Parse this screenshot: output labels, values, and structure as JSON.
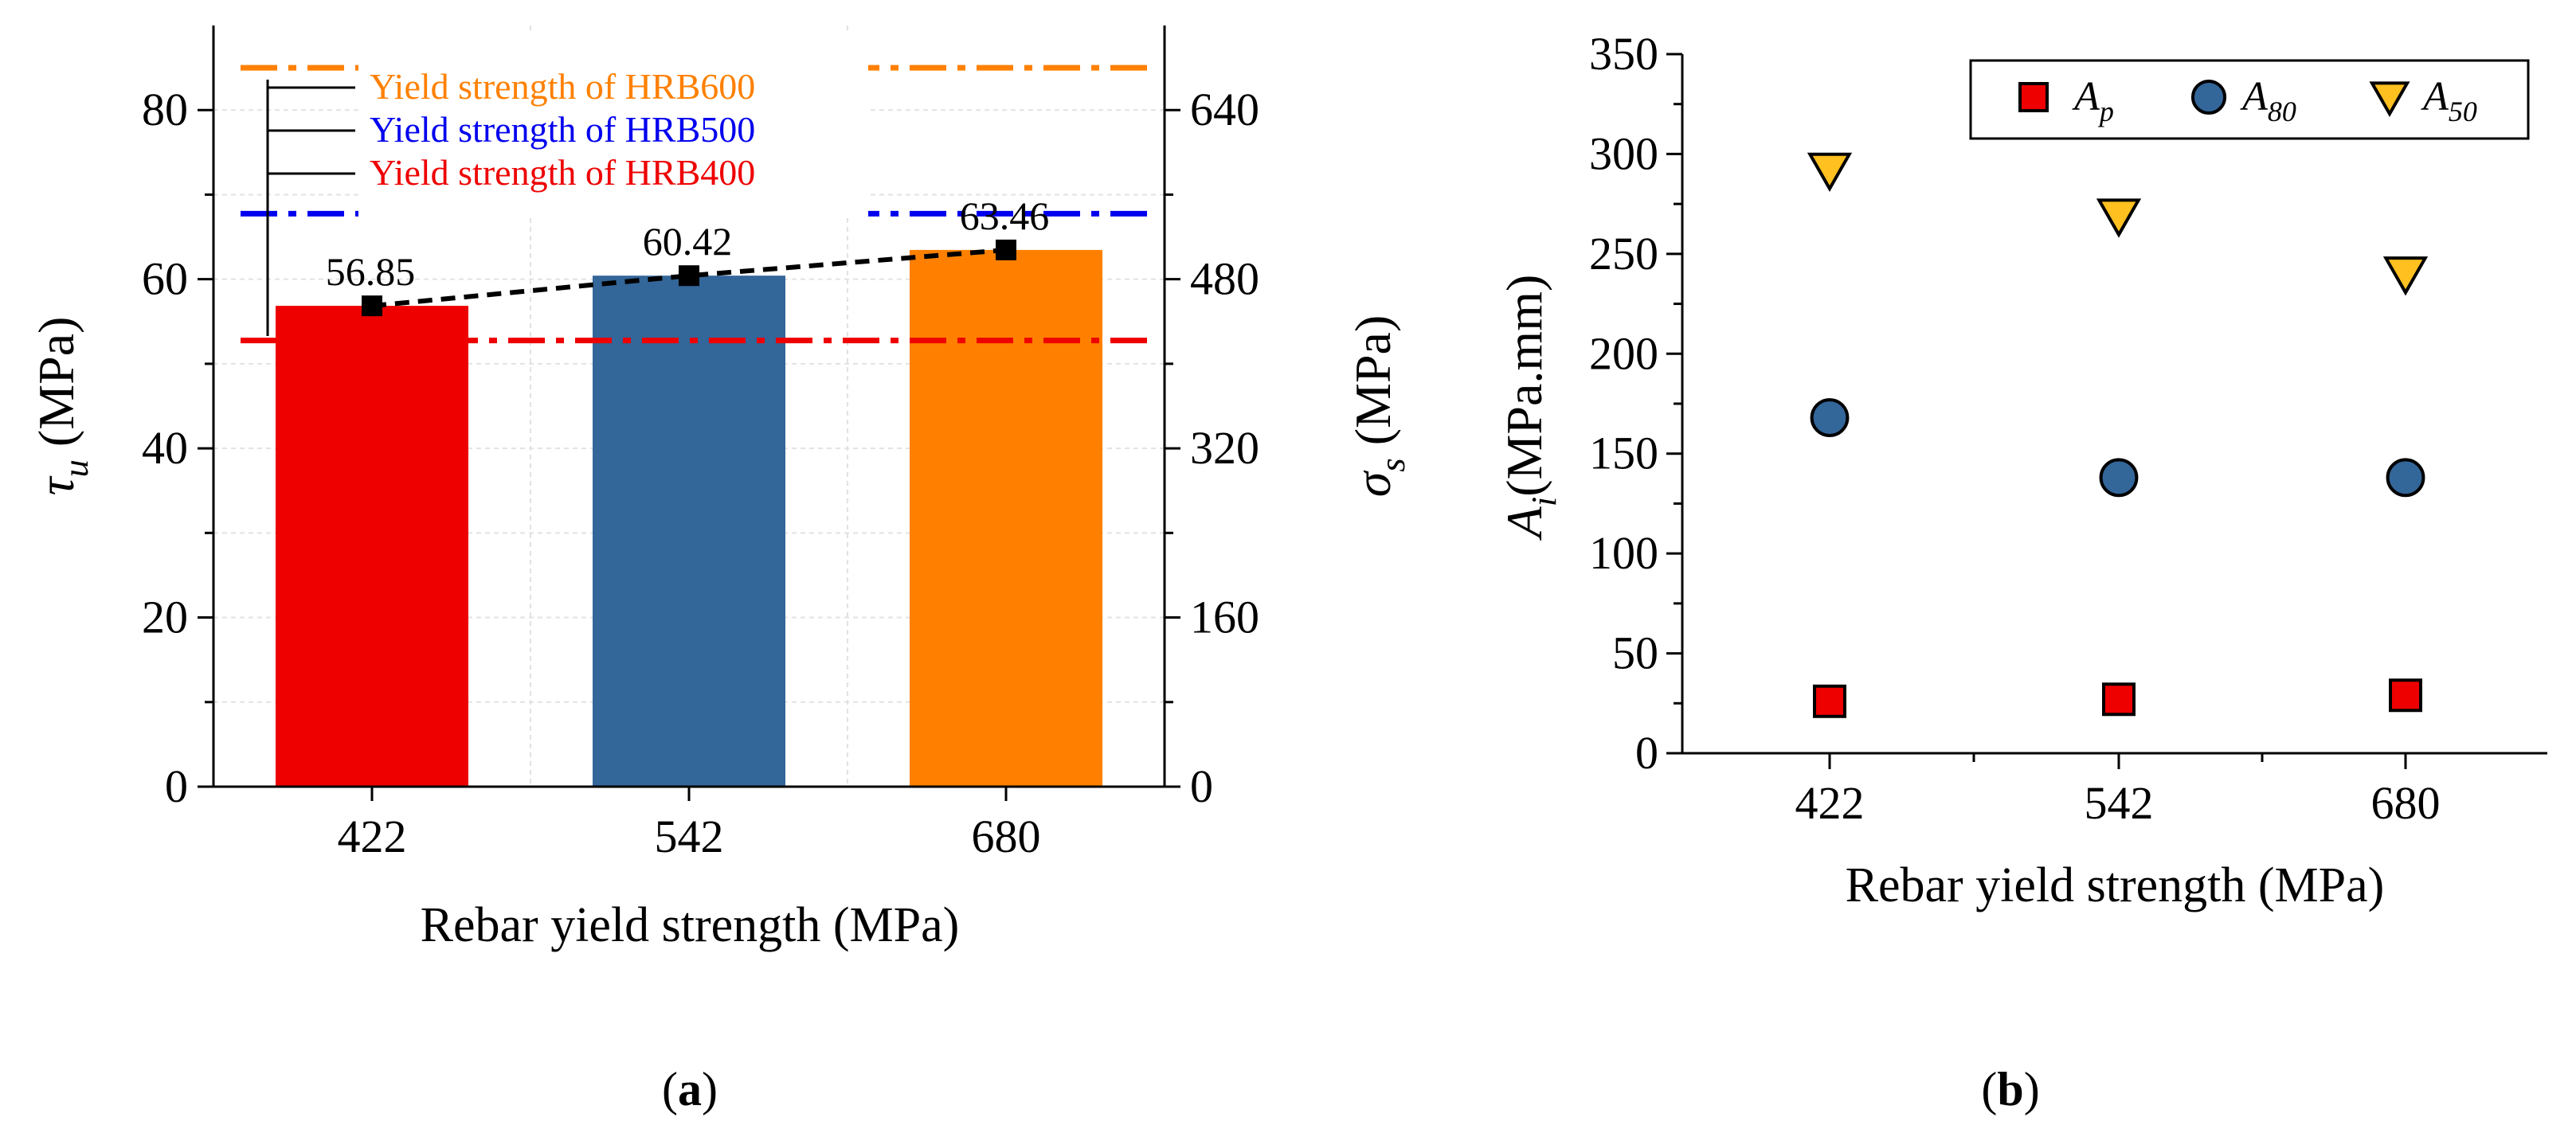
{
  "chart_data": [
    {
      "panel": "(a)",
      "panel_letter": "a",
      "type": "bar",
      "xlabel": "Rebar yield strength (MPa)",
      "ylabel_symbol": "τ",
      "ylabel_sub": "u",
      "ylabel_unit": " (MPa)",
      "y2label_symbol": "σ",
      "y2label_sub": "s",
      "y2label_unit": " (MPa)",
      "categories": [
        "422",
        "542",
        "680"
      ],
      "values": [
        56.85,
        60.42,
        63.46
      ],
      "value_labels": [
        "56.85",
        "60.42",
        "63.46"
      ],
      "bar_colors": [
        "#ee0000",
        "#336699",
        "#ff8000"
      ],
      "trend_line": "dashed",
      "ylim": [
        0,
        90
      ],
      "yticks": [
        0,
        20,
        40,
        60,
        80
      ],
      "y2lim": [
        0,
        720
      ],
      "y2ticks": [
        0,
        160,
        320,
        480,
        640
      ],
      "grid": true,
      "reference_lines": [
        {
          "label": "Yield strength of HRB600",
          "y2_value": 680,
          "color": "#ff8000",
          "style": "dash-dot"
        },
        {
          "label": "Yield strength of HRB500",
          "y2_value": 542,
          "color": "#0000ee",
          "style": "dash-dot"
        },
        {
          "label": "Yield strength of HRB400",
          "y2_value": 422,
          "color": "#ee0000",
          "style": "dash-dot"
        }
      ]
    },
    {
      "panel": "(b)",
      "panel_letter": "b",
      "type": "scatter",
      "xlabel": "Rebar yield strength (MPa)",
      "ylabel_symbol": "A",
      "ylabel_sub": "i",
      "ylabel_unit": "(MPa.mm)",
      "categories": [
        "422",
        "542",
        "680"
      ],
      "ylim": [
        0,
        350
      ],
      "yticks": [
        0,
        50,
        100,
        150,
        200,
        250,
        300,
        350
      ],
      "legend_position": "top-right",
      "series": [
        {
          "name": "A",
          "sub": "p",
          "marker": "square",
          "color": "#ee0000",
          "values": [
            26,
            27,
            29
          ]
        },
        {
          "name": "A",
          "sub": "80",
          "marker": "circle",
          "color": "#336699",
          "values": [
            168,
            138,
            138
          ]
        },
        {
          "name": "A",
          "sub": "50",
          "marker": "triangle-down",
          "color": "#ffc020",
          "values": [
            292,
            269,
            240
          ]
        }
      ]
    }
  ]
}
